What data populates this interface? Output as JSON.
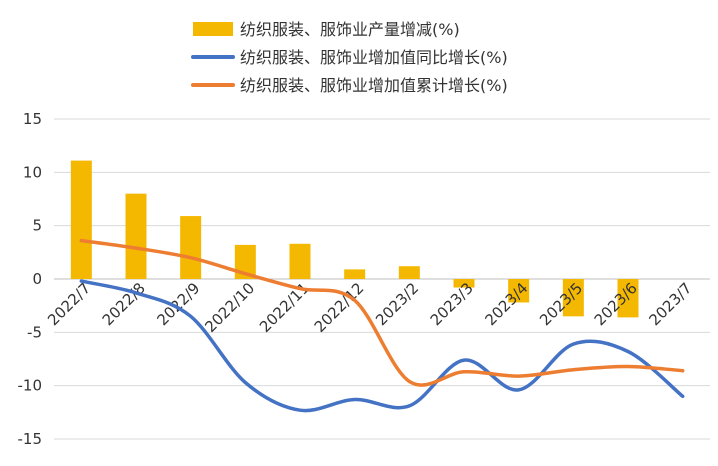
{
  "chart_data": {
    "type": "bar",
    "title": "",
    "xlabel": "",
    "ylabel": "",
    "ylim": [
      -15,
      15
    ],
    "yticks": [
      15,
      10,
      5,
      0,
      -5,
      -10,
      -15
    ],
    "grid": true,
    "legend_position": "top",
    "categories": [
      "2022/7",
      "2022/8",
      "2022/9",
      "2022/10",
      "2022/11",
      "2022/12",
      "2023/2",
      "2023/3",
      "2023/4",
      "2023/5",
      "2023/6",
      "2023/7"
    ],
    "series": [
      {
        "name": "纺织服装、服饰业产量增减(%)",
        "kind": "bar",
        "color": "#F5B800",
        "values": [
          11.1,
          8.0,
          5.9,
          3.2,
          3.3,
          0.9,
          1.2,
          -0.8,
          -2.2,
          -3.5,
          -3.6,
          null
        ]
      },
      {
        "name": "纺织服装、服饰业增加值同比增长(%)",
        "kind": "line",
        "color": "#4472C4",
        "values": [
          -0.2,
          -1.3,
          -3.5,
          -9.7,
          -12.3,
          -11.3,
          -11.9,
          -7.6,
          -10.4,
          -6.1,
          -6.8,
          -11.0
        ]
      },
      {
        "name": "纺织服装、服饰业增加值累计增长(%)",
        "kind": "line",
        "color": "#ED7D31",
        "values": [
          3.6,
          2.9,
          2.0,
          0.5,
          -0.9,
          -2.0,
          -9.6,
          -8.7,
          -9.1,
          -8.5,
          -8.2,
          -8.6
        ]
      }
    ]
  }
}
